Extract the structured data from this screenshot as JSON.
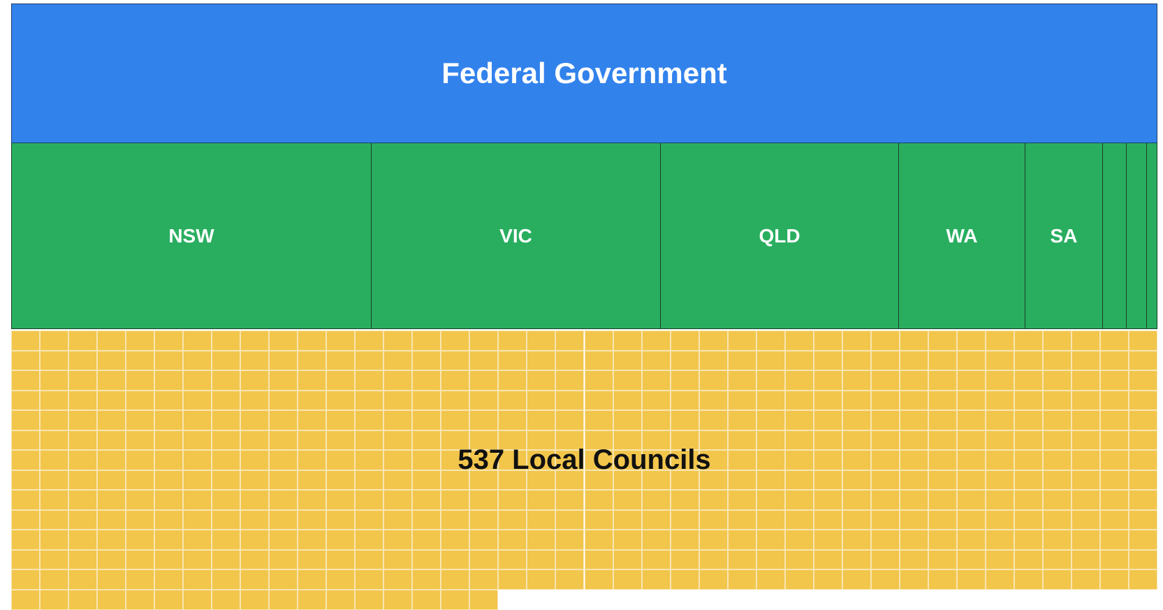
{
  "federal": {
    "title": "Federal Government"
  },
  "states": {
    "labels": [
      "NSW",
      "VIC",
      "QLD",
      "WA",
      "SA"
    ]
  },
  "local": {
    "title": "537 Local Councils"
  }
}
